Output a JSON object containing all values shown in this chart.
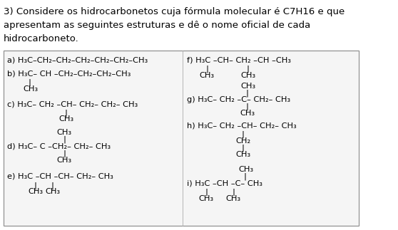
{
  "title_lines": [
    "3) Considere os hidrocarbonetos cuja fórmula molecular é C7H16 e que",
    "apresentam as seguintes estruturas e dê o nome oficial de cada",
    "hidrocarboneto."
  ],
  "background_color": "#ffffff",
  "text_color": "#000000",
  "title_fontsize": 9.5,
  "body_fontsize": 8.2
}
